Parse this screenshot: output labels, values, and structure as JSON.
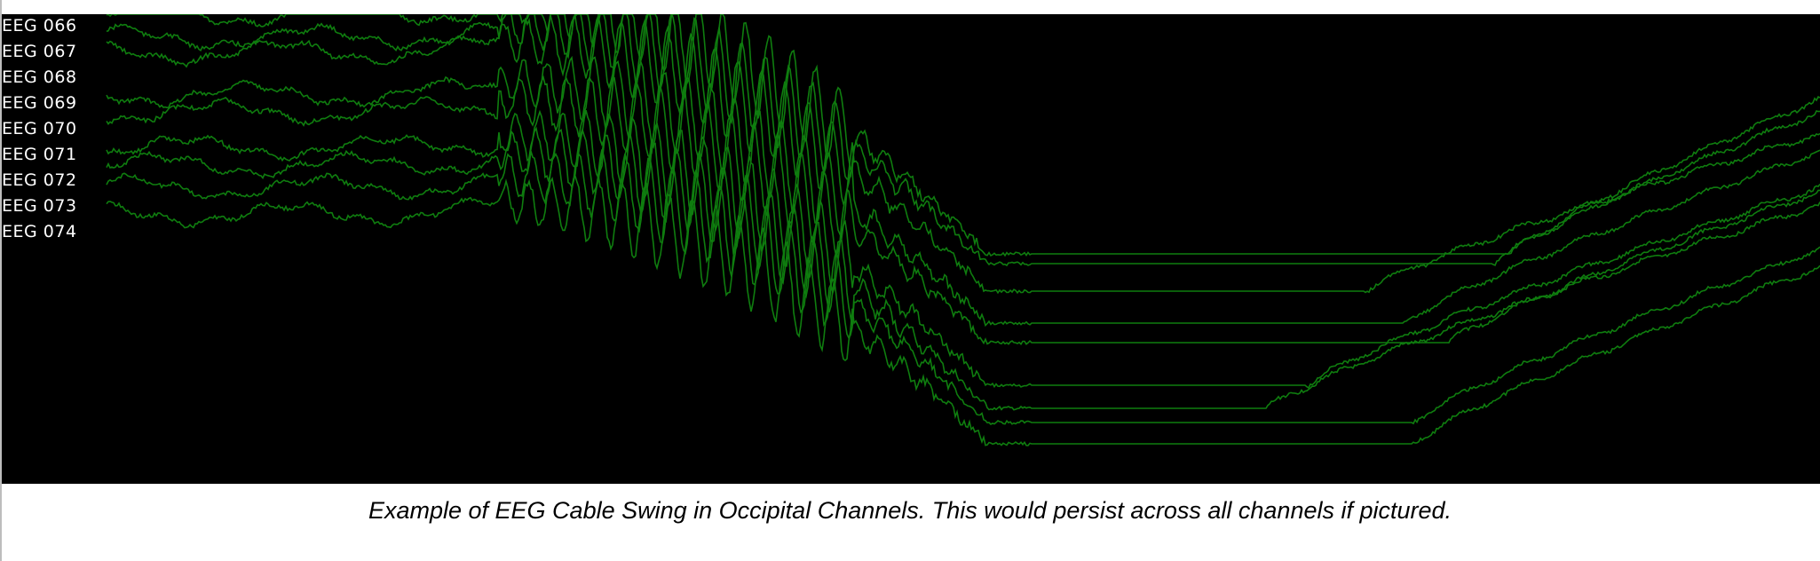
{
  "channels": [
    "EEG 066",
    "EEG 067",
    "EEG 068",
    "EEG 069",
    "EEG 070",
    "EEG 071",
    "EEG 072",
    "EEG 073",
    "EEG 074"
  ],
  "caption": "Example of EEG Cable Swing in Occipital Channels. This would persist across all channels if pictured.",
  "colors": {
    "trace": "#0f7d0f",
    "background": "#000000",
    "label": "#ffffff"
  }
}
